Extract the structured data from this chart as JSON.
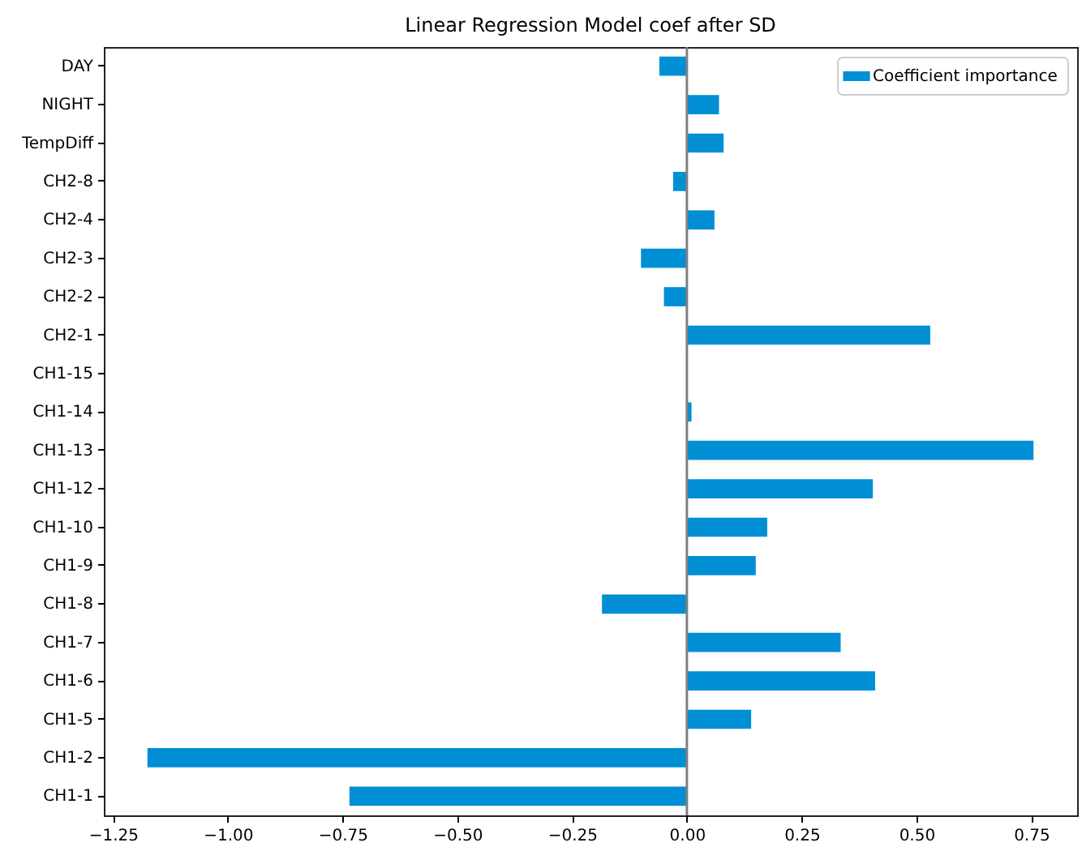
{
  "chart_data": {
    "type": "bar",
    "orientation": "horizontal",
    "title": "Linear Regression Model coef after SD",
    "categories": [
      "DAY",
      "NIGHT",
      "TempDiff",
      "CH2-8",
      "CH2-4",
      "CH2-3",
      "CH2-2",
      "CH2-1",
      "CH1-15",
      "CH1-14",
      "CH1-13",
      "CH1-12",
      "CH1-10",
      "CH1-9",
      "CH1-8",
      "CH1-7",
      "CH1-6",
      "CH1-5",
      "CH1-2",
      "CH1-1"
    ],
    "series": [
      {
        "name": "Coefficient importance",
        "color": "#008fd5",
        "values": [
          -0.06,
          0.07,
          0.08,
          -0.03,
          0.06,
          -0.1,
          -0.05,
          0.53,
          0,
          0.01,
          0.755,
          0.405,
          0.175,
          0.15,
          -0.185,
          0.335,
          0.41,
          0.14,
          -1.175,
          -0.735
        ]
      }
    ],
    "xlim": [
      -1.27,
      0.85
    ],
    "xticks": [
      {
        "value": -1.25,
        "label": "−1.25"
      },
      {
        "value": -1,
        "label": "−1.00"
      },
      {
        "value": -0.75,
        "label": "−0.75"
      },
      {
        "value": -0.5,
        "label": "−0.50"
      },
      {
        "value": -0.25,
        "label": "−0.25"
      },
      {
        "value": 0,
        "label": "0.00"
      },
      0.25,
      {
        "value": 0.5,
        "label": "0.50"
      },
      0.75
    ],
    "ref_lines": [
      {
        "axis": "x",
        "value": 0,
        "color": "#808080"
      }
    ],
    "legend": "top right"
  }
}
